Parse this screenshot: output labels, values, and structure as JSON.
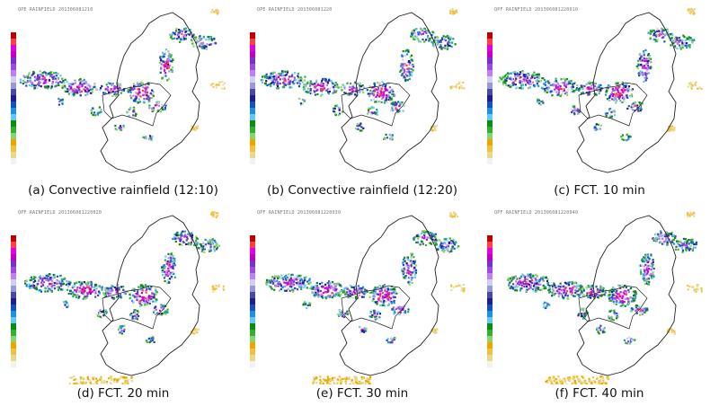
{
  "panels": [
    {
      "caption": "(a) Convective rainfield (12:10)",
      "stamp": "QPE RAINFIELD 201306081210",
      "seed": 11,
      "density": 1.0,
      "shift": 0
    },
    {
      "caption": "(b) Convective rainfield (12:20)",
      "stamp": "QPE RAINFIELD 201306081220",
      "seed": 23,
      "density": 1.05,
      "shift": 4
    },
    {
      "caption": "(c) FCT. 10 min",
      "stamp": "QPF RAINFIELD 201306081220010",
      "seed": 37,
      "density": 1.1,
      "shift": 6
    },
    {
      "caption": "(d) FCT. 20 min",
      "stamp": "QPF RAINFIELD 201306081220020",
      "seed": 41,
      "density": 1.15,
      "shift": 10
    },
    {
      "caption": "(e) FCT. 30 min",
      "stamp": "QPF RAINFIELD 201306081220030",
      "seed": 53,
      "density": 1.2,
      "shift": 14
    },
    {
      "caption": "(f) FCT. 40 min",
      "stamp": "QPF RAINFIELD 201306081220040",
      "seed": 67,
      "density": 1.25,
      "shift": 18
    }
  ],
  "colors": {
    "scale": [
      "#f2f2f2",
      "#e8d98a",
      "#f0c040",
      "#e8a800",
      "#8bd36b",
      "#33b033",
      "#0e8a0e",
      "#63c8f0",
      "#1e90e0",
      "#1550c0",
      "#1f1f8c",
      "#4a4aa0",
      "#9a9ad0",
      "#d0d0f0",
      "#c080f0",
      "#9a4ee0",
      "#7a2ed0",
      "#c000c0",
      "#e000e0",
      "#ff4040",
      "#c00000"
    ],
    "border": "#222222"
  }
}
